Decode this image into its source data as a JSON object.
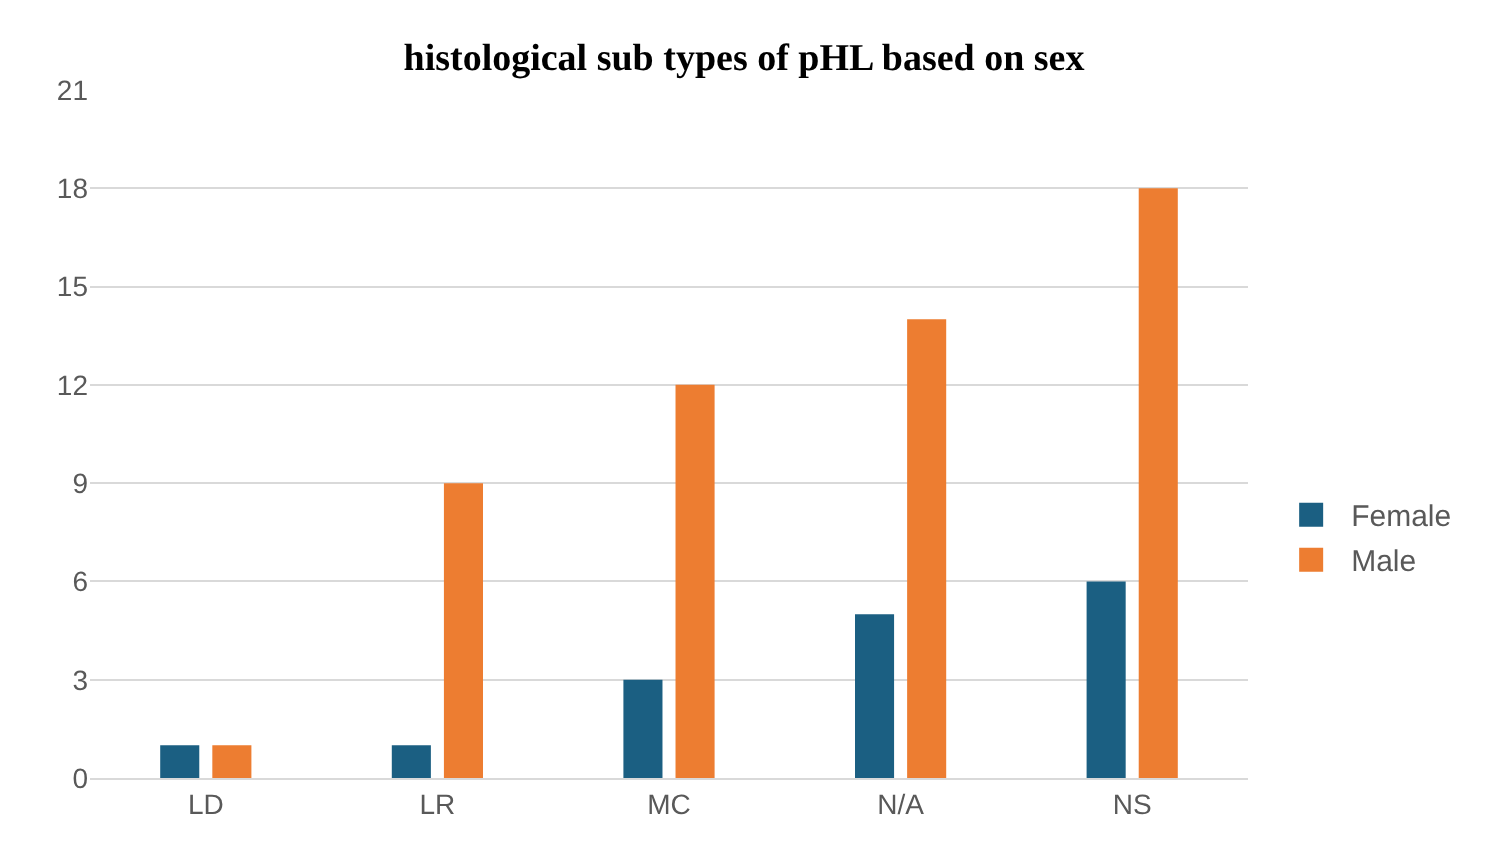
{
  "chart_data": {
    "type": "bar",
    "title": "histological sub types of pHL based on sex",
    "categories": [
      "LD",
      "LR",
      "MC",
      "N/A",
      "NS"
    ],
    "series": [
      {
        "name": "Female",
        "color": "#1b5f82",
        "values": [
          1,
          1,
          3,
          5,
          6
        ]
      },
      {
        "name": "Male",
        "color": "#ed7d31",
        "values": [
          1,
          9,
          12,
          14,
          18
        ]
      }
    ],
    "ylim": [
      0,
      21
    ],
    "yticks": [
      0,
      3,
      6,
      9,
      12,
      15,
      18,
      21
    ],
    "grid": "y",
    "legend": "right"
  }
}
